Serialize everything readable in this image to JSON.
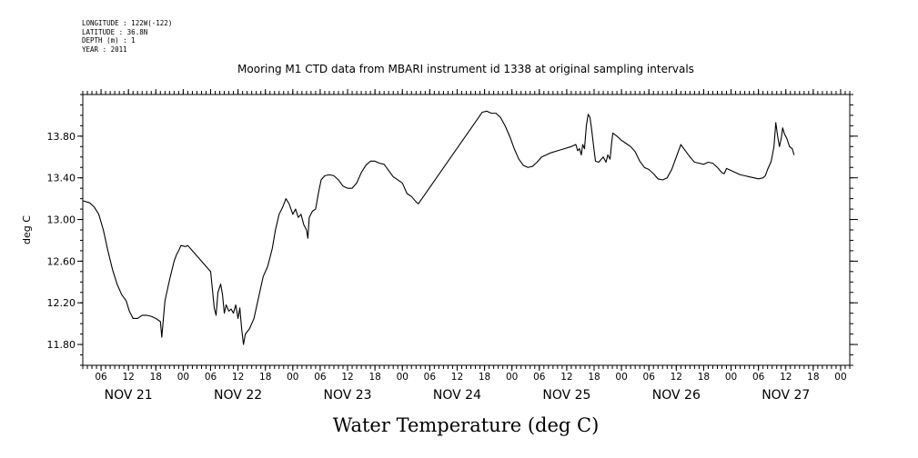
{
  "header": {
    "lines": [
      "LONGITUDE : 122W(-122)",
      "LATITUDE : 36.8N",
      "DEPTH (m) : 1",
      "YEAR : 2011"
    ]
  },
  "chart_data": {
    "type": "line",
    "title": "Mooring M1 CTD data from MBARI instrument id 1338 at original sampling intervals",
    "ylabel": "deg C",
    "xlabel": "Water Temperature (deg C)",
    "ylim": [
      11.6,
      14.2
    ],
    "xlim": [
      2,
      170
    ],
    "yticks": [
      11.8,
      12.2,
      12.6,
      13.0,
      13.4,
      13.8
    ],
    "ytick_labels": [
      "11.80",
      "12.20",
      "12.60",
      "13.00",
      "13.40",
      "13.80"
    ],
    "x_unit": "hours since Nov 21 00:00",
    "hour_ticks": [
      {
        "x": 6,
        "label": "06"
      },
      {
        "x": 12,
        "label": "12"
      },
      {
        "x": 18,
        "label": "18"
      },
      {
        "x": 24,
        "label": "00"
      },
      {
        "x": 30,
        "label": "06"
      },
      {
        "x": 36,
        "label": "12"
      },
      {
        "x": 42,
        "label": "18"
      },
      {
        "x": 48,
        "label": "00"
      },
      {
        "x": 54,
        "label": "06"
      },
      {
        "x": 60,
        "label": "12"
      },
      {
        "x": 66,
        "label": "18"
      },
      {
        "x": 72,
        "label": "00"
      },
      {
        "x": 78,
        "label": "06"
      },
      {
        "x": 84,
        "label": "12"
      },
      {
        "x": 90,
        "label": "18"
      },
      {
        "x": 96,
        "label": "00"
      },
      {
        "x": 102,
        "label": "06"
      },
      {
        "x": 108,
        "label": "12"
      },
      {
        "x": 114,
        "label": "18"
      },
      {
        "x": 120,
        "label": "00"
      },
      {
        "x": 126,
        "label": "06"
      },
      {
        "x": 132,
        "label": "12"
      },
      {
        "x": 138,
        "label": "18"
      },
      {
        "x": 144,
        "label": "00"
      },
      {
        "x": 150,
        "label": "06"
      },
      {
        "x": 156,
        "label": "12"
      },
      {
        "x": 162,
        "label": "18"
      },
      {
        "x": 168,
        "label": "00"
      }
    ],
    "day_labels": [
      {
        "x": 12,
        "label": "NOV 21"
      },
      {
        "x": 36,
        "label": "NOV 22"
      },
      {
        "x": 60,
        "label": "NOV 23"
      },
      {
        "x": 84,
        "label": "NOV 24"
      },
      {
        "x": 108,
        "label": "NOV 25"
      },
      {
        "x": 132,
        "label": "NOV 26"
      },
      {
        "x": 156,
        "label": "NOV 27"
      }
    ],
    "series": [
      {
        "color": "#000000",
        "points": [
          [
            2,
            13.18
          ],
          [
            3.5,
            13.16
          ],
          [
            4.5,
            13.12
          ],
          [
            5.5,
            13.05
          ],
          [
            6.5,
            12.9
          ],
          [
            7.5,
            12.7
          ],
          [
            8.5,
            12.52
          ],
          [
            9.5,
            12.38
          ],
          [
            10.5,
            12.28
          ],
          [
            11.5,
            12.22
          ],
          [
            12.2,
            12.12
          ],
          [
            13,
            12.05
          ],
          [
            14,
            12.05
          ],
          [
            15,
            12.08
          ],
          [
            16,
            12.08
          ],
          [
            17,
            12.07
          ],
          [
            18,
            12.05
          ],
          [
            19,
            12.02
          ],
          [
            19.3,
            11.87
          ],
          [
            19.6,
            12.02
          ],
          [
            20,
            12.22
          ],
          [
            21,
            12.42
          ],
          [
            22,
            12.6
          ],
          [
            22.5,
            12.66
          ],
          [
            23,
            12.7
          ],
          [
            23.5,
            12.75
          ],
          [
            24.5,
            12.74
          ],
          [
            25,
            12.75
          ],
          [
            26,
            12.7
          ],
          [
            27,
            12.65
          ],
          [
            28,
            12.6
          ],
          [
            29,
            12.55
          ],
          [
            30,
            12.5
          ],
          [
            30.8,
            12.15
          ],
          [
            31.2,
            12.08
          ],
          [
            31.6,
            12.3
          ],
          [
            32.2,
            12.38
          ],
          [
            32.6,
            12.28
          ],
          [
            33,
            12.1
          ],
          [
            33.4,
            12.18
          ],
          [
            34,
            12.12
          ],
          [
            34.5,
            12.14
          ],
          [
            35,
            12.1
          ],
          [
            35.5,
            12.18
          ],
          [
            36,
            12.05
          ],
          [
            36.4,
            12.15
          ],
          [
            36.8,
            11.95
          ],
          [
            37.2,
            11.8
          ],
          [
            37.6,
            11.9
          ],
          [
            38.5,
            11.95
          ],
          [
            39.5,
            12.05
          ],
          [
            40.5,
            12.25
          ],
          [
            41.5,
            12.45
          ],
          [
            42.5,
            12.55
          ],
          [
            43.5,
            12.72
          ],
          [
            44.2,
            12.9
          ],
          [
            45,
            13.05
          ],
          [
            45.8,
            13.12
          ],
          [
            46.5,
            13.2
          ],
          [
            47.2,
            13.15
          ],
          [
            48,
            13.05
          ],
          [
            48.6,
            13.1
          ],
          [
            49.2,
            13.02
          ],
          [
            49.8,
            13.05
          ],
          [
            50.4,
            12.95
          ],
          [
            51,
            12.9
          ],
          [
            51.3,
            12.82
          ],
          [
            51.6,
            13.02
          ],
          [
            52.3,
            13.08
          ],
          [
            53,
            13.1
          ],
          [
            53.6,
            13.25
          ],
          [
            54.2,
            13.38
          ],
          [
            55,
            13.42
          ],
          [
            56,
            13.43
          ],
          [
            57,
            13.42
          ],
          [
            58,
            13.38
          ],
          [
            59,
            13.32
          ],
          [
            60,
            13.3
          ],
          [
            61,
            13.3
          ],
          [
            62,
            13.35
          ],
          [
            63,
            13.45
          ],
          [
            64,
            13.52
          ],
          [
            65,
            13.56
          ],
          [
            66,
            13.56
          ],
          [
            67,
            13.54
          ],
          [
            68,
            13.53
          ],
          [
            69,
            13.47
          ],
          [
            70,
            13.41
          ],
          [
            71,
            13.38
          ],
          [
            72,
            13.35
          ],
          [
            73,
            13.25
          ],
          [
            74,
            13.22
          ],
          [
            75,
            13.17
          ],
          [
            75.5,
            13.15
          ],
          [
            89.5,
            14.03
          ],
          [
            90.5,
            14.04
          ],
          [
            91.5,
            14.02
          ],
          [
            92.5,
            14.02
          ],
          [
            93.5,
            13.98
          ],
          [
            94.5,
            13.9
          ],
          [
            95.5,
            13.8
          ],
          [
            96.5,
            13.68
          ],
          [
            97.5,
            13.58
          ],
          [
            98.5,
            13.52
          ],
          [
            99.5,
            13.5
          ],
          [
            100.5,
            13.51
          ],
          [
            101.5,
            13.55
          ],
          [
            102.5,
            13.6
          ],
          [
            103.5,
            13.62
          ],
          [
            104.5,
            13.64
          ],
          [
            106,
            13.66
          ],
          [
            107.5,
            13.68
          ],
          [
            109,
            13.7
          ],
          [
            110,
            13.72
          ],
          [
            110.4,
            13.66
          ],
          [
            110.8,
            13.68
          ],
          [
            111.2,
            13.62
          ],
          [
            111.5,
            13.72
          ],
          [
            111.9,
            13.68
          ],
          [
            112.3,
            13.9
          ],
          [
            112.7,
            14.01
          ],
          [
            113.1,
            13.98
          ],
          [
            113.5,
            13.85
          ],
          [
            113.9,
            13.7
          ],
          [
            114.3,
            13.56
          ],
          [
            115,
            13.55
          ],
          [
            116,
            13.6
          ],
          [
            116.6,
            13.55
          ],
          [
            117,
            13.62
          ],
          [
            117.5,
            13.58
          ],
          [
            117.8,
            13.72
          ],
          [
            118.1,
            13.83
          ],
          [
            119,
            13.8
          ],
          [
            120,
            13.76
          ],
          [
            121,
            13.73
          ],
          [
            122,
            13.7
          ],
          [
            123,
            13.65
          ],
          [
            124,
            13.56
          ],
          [
            125,
            13.5
          ],
          [
            126,
            13.48
          ],
          [
            127,
            13.44
          ],
          [
            128,
            13.39
          ],
          [
            129,
            13.38
          ],
          [
            130,
            13.4
          ],
          [
            131,
            13.48
          ],
          [
            132,
            13.6
          ],
          [
            133,
            13.72
          ],
          [
            134,
            13.66
          ],
          [
            135,
            13.6
          ],
          [
            136,
            13.55
          ],
          [
            137,
            13.54
          ],
          [
            138,
            13.53
          ],
          [
            139,
            13.55
          ],
          [
            140,
            13.54
          ],
          [
            141,
            13.5
          ],
          [
            142,
            13.45
          ],
          [
            142.5,
            13.44
          ],
          [
            143,
            13.49
          ],
          [
            144,
            13.47
          ],
          [
            145,
            13.45
          ],
          [
            146,
            13.43
          ],
          [
            147,
            13.42
          ],
          [
            148,
            13.41
          ],
          [
            149,
            13.4
          ],
          [
            150,
            13.39
          ],
          [
            151,
            13.4
          ],
          [
            151.5,
            13.42
          ],
          [
            152,
            13.48
          ],
          [
            152.8,
            13.56
          ],
          [
            153.4,
            13.7
          ],
          [
            153.8,
            13.93
          ],
          [
            154.2,
            13.8
          ],
          [
            154.6,
            13.7
          ],
          [
            155,
            13.78
          ],
          [
            155.3,
            13.88
          ],
          [
            155.7,
            13.82
          ],
          [
            156.2,
            13.78
          ],
          [
            156.8,
            13.7
          ],
          [
            157.4,
            13.68
          ],
          [
            157.8,
            13.62
          ]
        ]
      }
    ]
  }
}
